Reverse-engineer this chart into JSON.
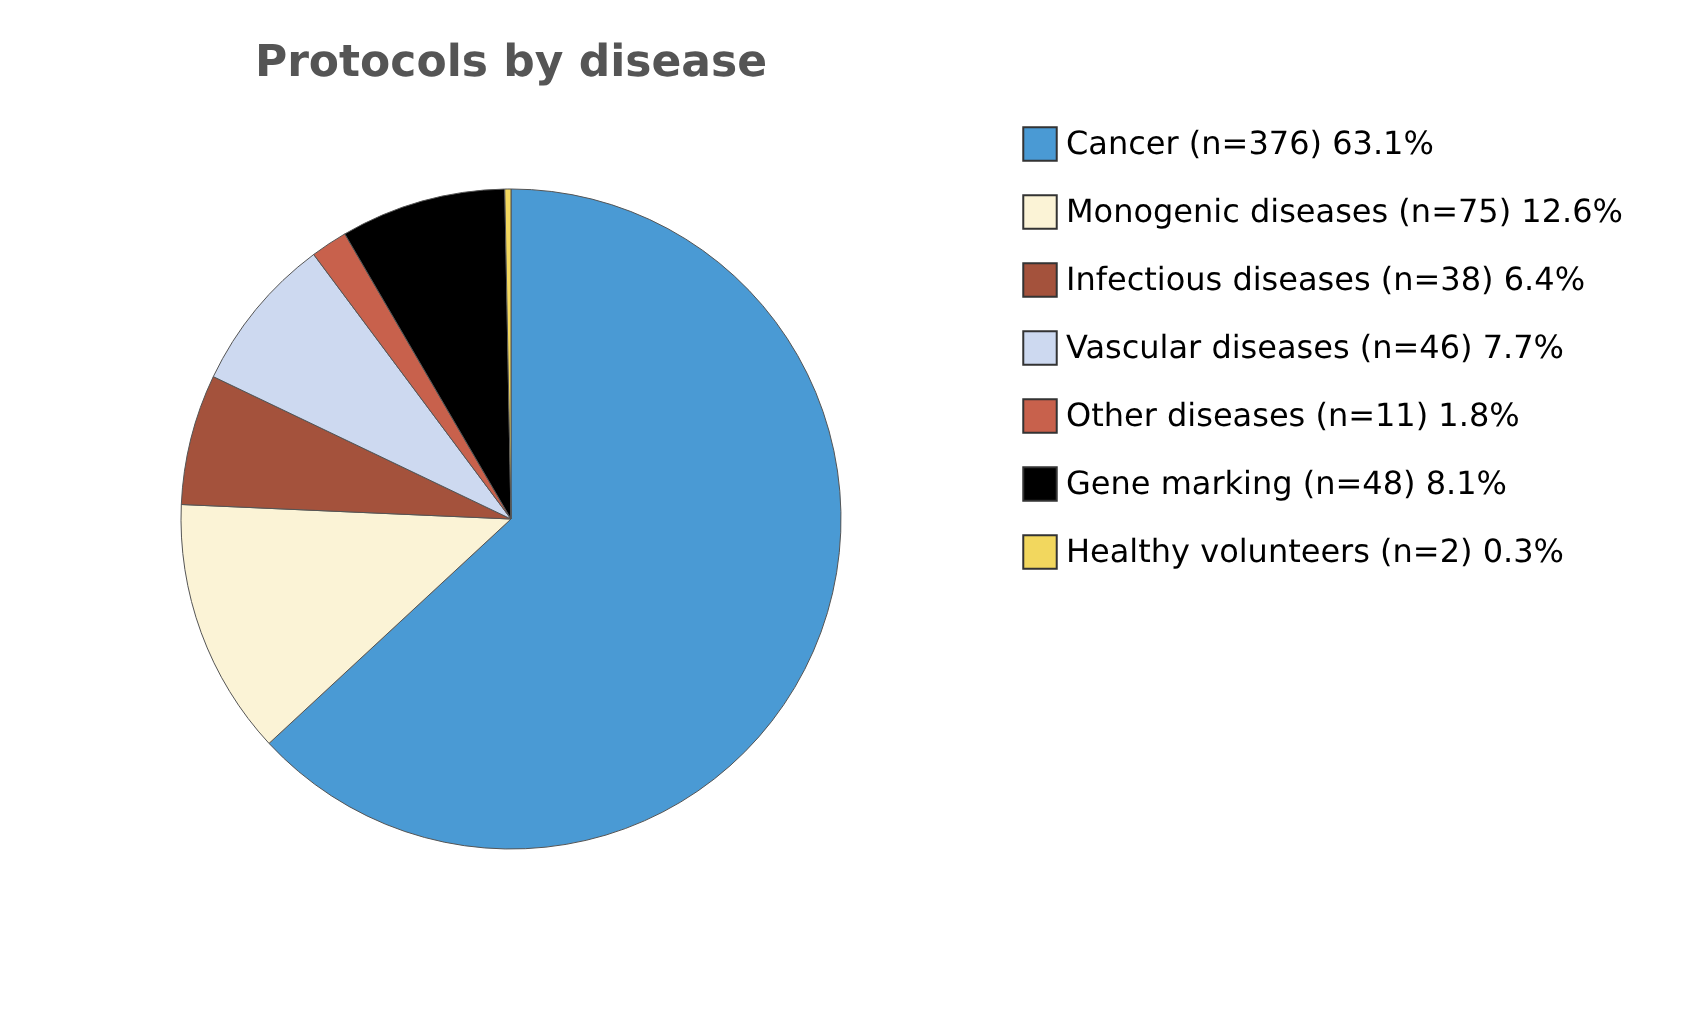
{
  "chart_data": {
    "type": "pie",
    "title": "Protocols by disease",
    "categories": [
      "Cancer (n=376) 63.1%",
      "Monogenic diseases (n=75) 12.6%",
      "Infectious diseases (n=38) 6.4%",
      "Vascular diseases (n=46) 7.7%",
      "Other diseases (n=11) 1.8%",
      "Gene marking (n=48) 8.1%",
      "Healthy volunteers (n=2) 0.3%"
    ],
    "values": [
      63.1,
      12.6,
      6.4,
      7.7,
      1.8,
      8.1,
      0.3
    ],
    "colors": [
      "#4a9ad4",
      "#fbf3d6",
      "#a4523c",
      "#cdd9f0",
      "#c8614c",
      "#000000",
      "#f2d75e"
    ],
    "legend": "right"
  }
}
